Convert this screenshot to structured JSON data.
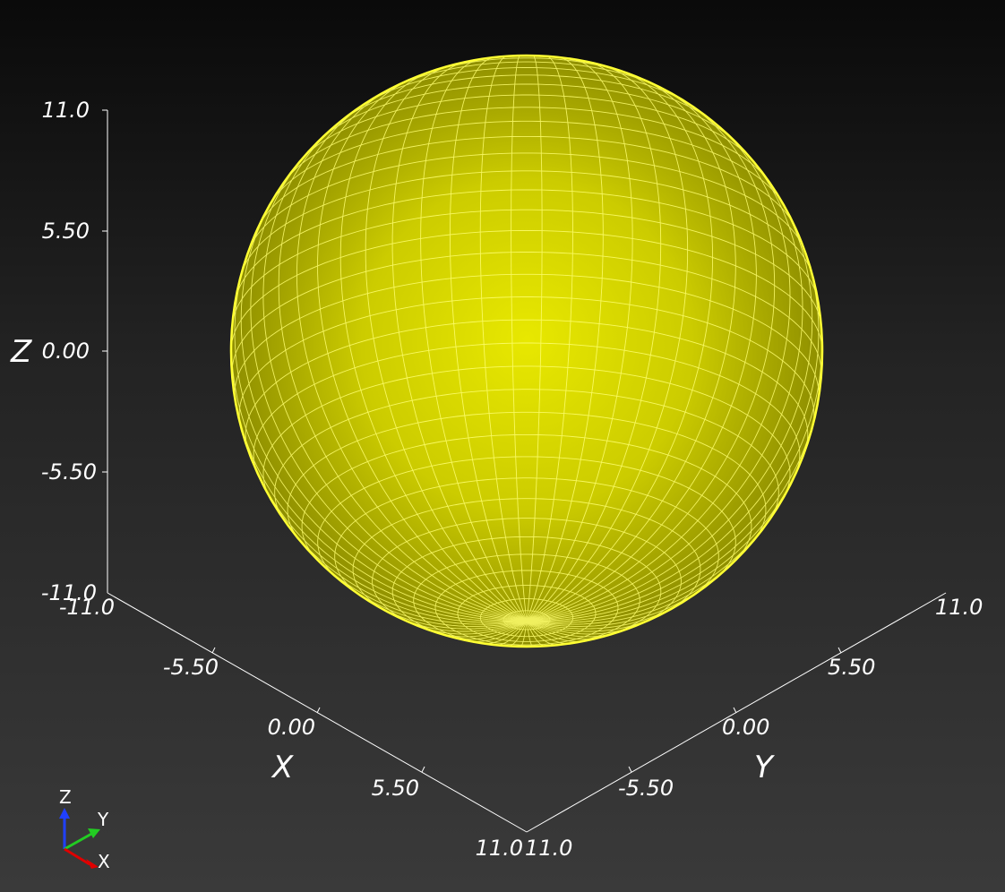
{
  "axes": {
    "z": {
      "title": "Z",
      "ticks": [
        "11.0",
        "5.50",
        "0.00",
        "-5.50",
        "-11.0"
      ]
    },
    "x": {
      "title": "X",
      "ticks": [
        "-11.0",
        "-5.50",
        "0.00",
        "5.50",
        "11.0"
      ]
    },
    "y": {
      "title": "Y",
      "ticks": [
        "11.0",
        "5.50",
        "0.00",
        "-5.50"
      ]
    }
  },
  "orientation_widget": {
    "x_label": "X",
    "y_label": "Y",
    "z_label": "Z"
  },
  "colors": {
    "sphere": "#e6e600",
    "wire": "#ffff66",
    "axis_lines": "#ffffff",
    "widget_x": "#e00000",
    "widget_y": "#22cc22",
    "widget_z": "#2040ff"
  }
}
